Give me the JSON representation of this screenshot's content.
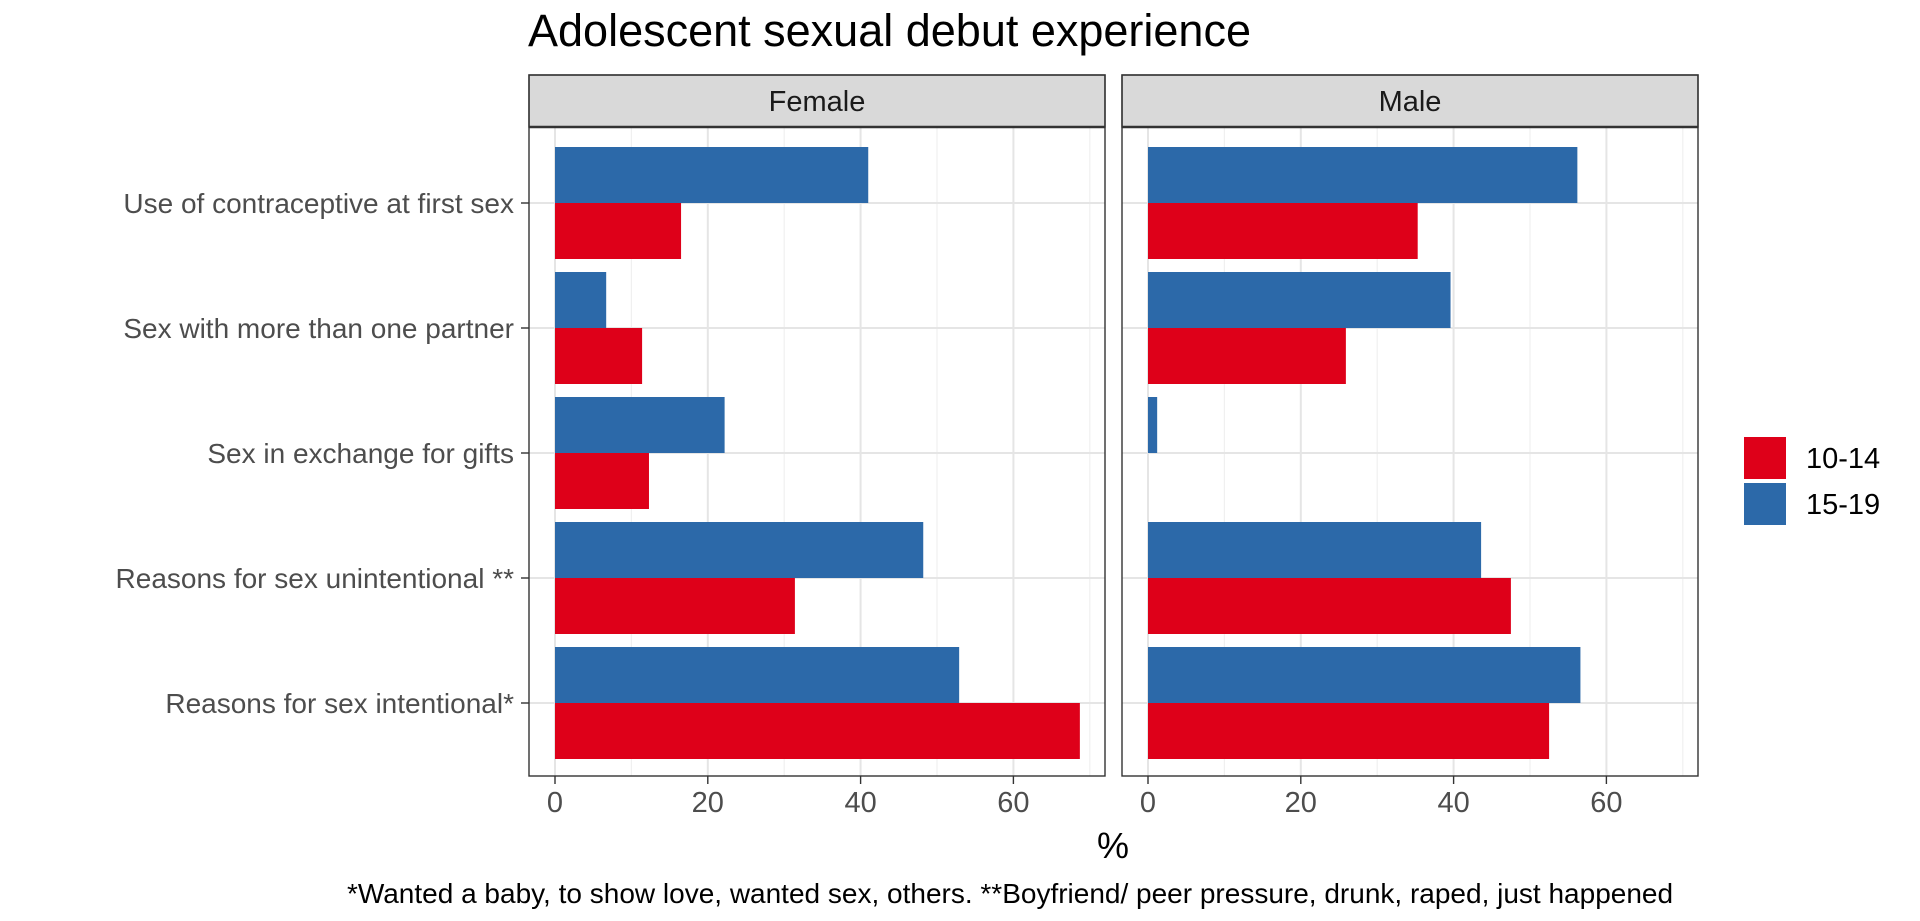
{
  "chart_data": {
    "type": "bar",
    "orientation": "horizontal",
    "title": "Adolescent sexual debut experience",
    "xlabel": "%",
    "ylabel": "",
    "xlim": [
      0,
      72
    ],
    "xticks": [
      "0",
      "20",
      "40",
      "60"
    ],
    "grid": true,
    "legend_position": "right",
    "categories": [
      "Use of contraceptive at first sex",
      "Sex with more than one partner",
      "Sex in exchange for gifts",
      "Reasons for sex unintentional **",
      "Reasons for sex intentional*  "
    ],
    "legend": [
      {
        "name": "10-14",
        "color": "#de0019"
      },
      {
        "name": "15-19",
        "color": "#2c69a9"
      }
    ],
    "panels": [
      {
        "label": "Female",
        "series": [
          {
            "name": "10-14",
            "values": [
              16.5,
              11.4,
              12.3,
              31.4,
              68.7
            ]
          },
          {
            "name": "15-19",
            "values": [
              41.0,
              6.7,
              22.2,
              48.2,
              52.9
            ]
          }
        ]
      },
      {
        "label": "Male",
        "series": [
          {
            "name": "10-14",
            "values": [
              35.3,
              25.9,
              0,
              47.5,
              52.5
            ]
          },
          {
            "name": "15-19",
            "values": [
              56.2,
              39.6,
              1.2,
              43.6,
              56.6
            ]
          }
        ]
      }
    ],
    "caption": "*Wanted a baby, to show love, wanted sex, others.  **Boyfriend/ peer pressure, drunk, raped, just happened"
  }
}
